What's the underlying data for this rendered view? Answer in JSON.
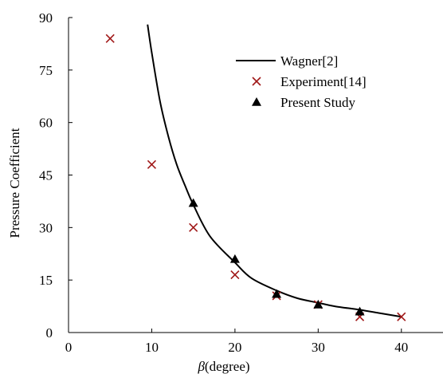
{
  "chart_data": {
    "type": "scatter",
    "title": "",
    "xlabel": "β(degree)",
    "ylabel": "Pressure Coefficient",
    "xlim": [
      0,
      45
    ],
    "ylim": [
      0,
      90
    ],
    "x_ticks": [
      "0",
      "10",
      "20",
      "30",
      "40"
    ],
    "y_ticks": [
      "0",
      "15",
      "30",
      "45",
      "60",
      "75",
      "90"
    ],
    "grid": false,
    "legend_position": "top-right",
    "series": [
      {
        "name": "Wagner[2]",
        "kind": "line",
        "color": "#000000",
        "x": [
          9.5,
          10.0,
          11.0,
          12.0,
          13.0,
          14.0,
          15.0,
          17.0,
          20.0,
          22.0,
          25.0,
          27.5,
          30.0,
          32.0,
          35.0,
          37.5,
          40.0
        ],
        "y": [
          88.0,
          80.0,
          66.0,
          56.0,
          48.0,
          42.0,
          36.5,
          27.5,
          20.0,
          15.5,
          12.0,
          9.8,
          8.5,
          7.5,
          6.5,
          5.5,
          4.5
        ]
      },
      {
        "name": "Experiment[14]",
        "kind": "marker-x",
        "color": "#a01818",
        "x": [
          5,
          10,
          15,
          20,
          25,
          30,
          35,
          40
        ],
        "y": [
          84,
          48,
          30,
          16.5,
          10.5,
          8,
          4.5,
          4.5
        ]
      },
      {
        "name": "Present Study",
        "kind": "marker-triangle",
        "color": "#000000",
        "x": [
          15,
          20,
          25,
          30,
          35
        ],
        "y": [
          37,
          21,
          11,
          8,
          6
        ]
      }
    ]
  }
}
